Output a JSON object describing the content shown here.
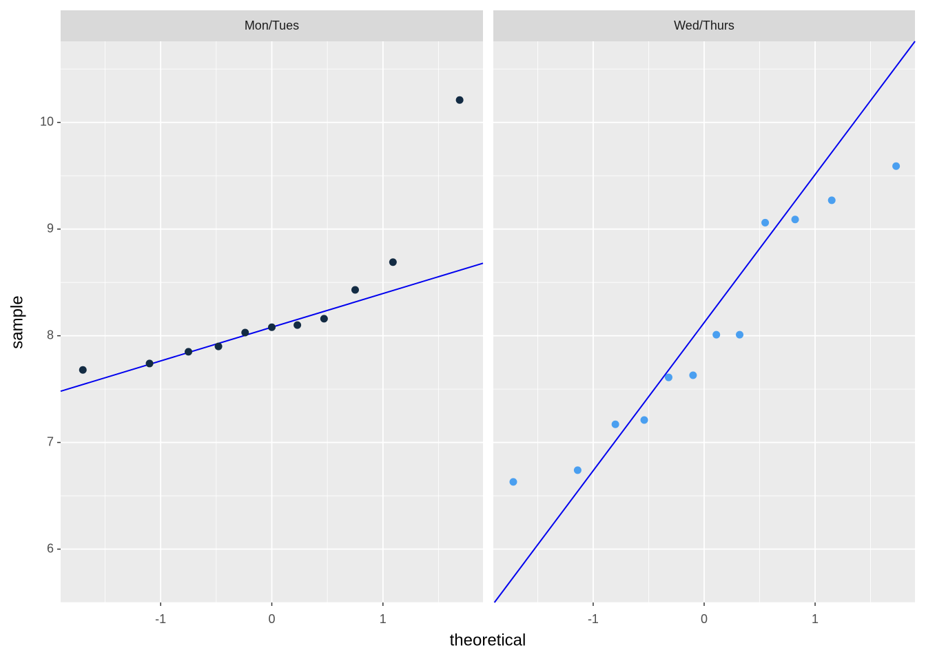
{
  "chart_data": {
    "type": "scatter",
    "xlabel": "theoretical",
    "ylabel": "sample",
    "xlim": [
      -1.9,
      1.9
    ],
    "ylim": [
      5.5,
      10.76
    ],
    "xticks": [
      -1,
      0,
      1
    ],
    "yticks": [
      6,
      7,
      8,
      9,
      10
    ],
    "grid": true,
    "panels": [
      {
        "title": "Mon/Tues",
        "color": "#132b43",
        "line_color": "#0000ee",
        "x": [
          -1.7,
          -1.1,
          -0.75,
          -0.48,
          -0.24,
          0,
          0.23,
          0.47,
          0.75,
          1.09,
          1.69
        ],
        "y": [
          7.68,
          7.74,
          7.85,
          7.9,
          8.03,
          8.08,
          8.1,
          8.16,
          8.43,
          8.69,
          10.21
        ],
        "line": {
          "x": [
            -1.9,
            1.9
          ],
          "y": [
            7.48,
            8.68
          ]
        }
      },
      {
        "title": "Wed/Thurs",
        "color": "#4a9ff0",
        "line_color": "#0000ee",
        "x": [
          -1.72,
          -1.14,
          -0.8,
          -0.54,
          -0.32,
          -0.1,
          0.11,
          0.32,
          0.55,
          0.82,
          1.15,
          1.73
        ],
        "y": [
          6.63,
          6.74,
          7.17,
          7.21,
          7.61,
          7.63,
          8.01,
          8.01,
          9.06,
          9.09,
          9.27,
          9.59
        ],
        "line": {
          "x": [
            -1.89,
            1.9
          ],
          "y": [
            5.5,
            10.76
          ]
        }
      }
    ]
  }
}
